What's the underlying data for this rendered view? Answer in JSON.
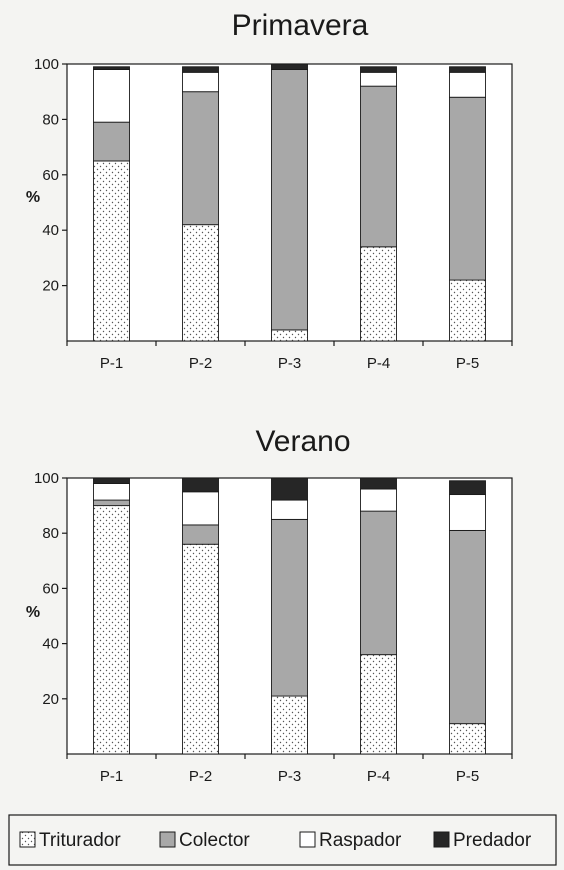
{
  "chart_data": [
    {
      "type": "bar",
      "stacked": true,
      "title": "Primavera",
      "ylabel": "%",
      "xlabel": "",
      "ylim": [
        0,
        100
      ],
      "yticks": [
        20,
        40,
        60,
        80,
        100
      ],
      "categories": [
        "P-1",
        "P-2",
        "P-3",
        "P-4",
        "P-5"
      ],
      "series": [
        {
          "name": "Triturador",
          "values": [
            65,
            42,
            4,
            34,
            22
          ]
        },
        {
          "name": "Colector",
          "values": [
            14,
            48,
            94,
            58,
            66
          ]
        },
        {
          "name": "Raspador",
          "values": [
            19,
            7,
            0,
            5,
            9
          ]
        },
        {
          "name": "Predador",
          "values": [
            1,
            2,
            2,
            2,
            2
          ]
        }
      ],
      "legend": "bottom",
      "grid": false
    },
    {
      "type": "bar",
      "stacked": true,
      "title": "Verano",
      "ylabel": "%",
      "xlabel": "",
      "ylim": [
        0,
        100
      ],
      "yticks": [
        20,
        40,
        60,
        80,
        100
      ],
      "categories": [
        "P-1",
        "P-2",
        "P-3",
        "P-4",
        "P-5"
      ],
      "series": [
        {
          "name": "Triturador",
          "values": [
            90,
            76,
            21,
            36,
            11
          ]
        },
        {
          "name": "Colector",
          "values": [
            2,
            7,
            64,
            52,
            70
          ]
        },
        {
          "name": "Raspador",
          "values": [
            6,
            12,
            7,
            8,
            13
          ]
        },
        {
          "name": "Predador",
          "values": [
            2,
            5,
            8,
            4,
            5
          ]
        }
      ],
      "legend": "bottom",
      "grid": false
    }
  ],
  "legend": {
    "items": [
      {
        "label": "Triturador",
        "fill": "dots"
      },
      {
        "label": "Colector",
        "fill": "#a8a8a8"
      },
      {
        "label": "Raspador",
        "fill": "#ffffff"
      },
      {
        "label": "Predador",
        "fill": "#262626"
      }
    ]
  },
  "colors": {
    "colector": "#a8a8a8",
    "raspador": "#ffffff",
    "predador": "#262626",
    "triturador_bg": "#ffffff",
    "triturador_dots": "#555555"
  }
}
